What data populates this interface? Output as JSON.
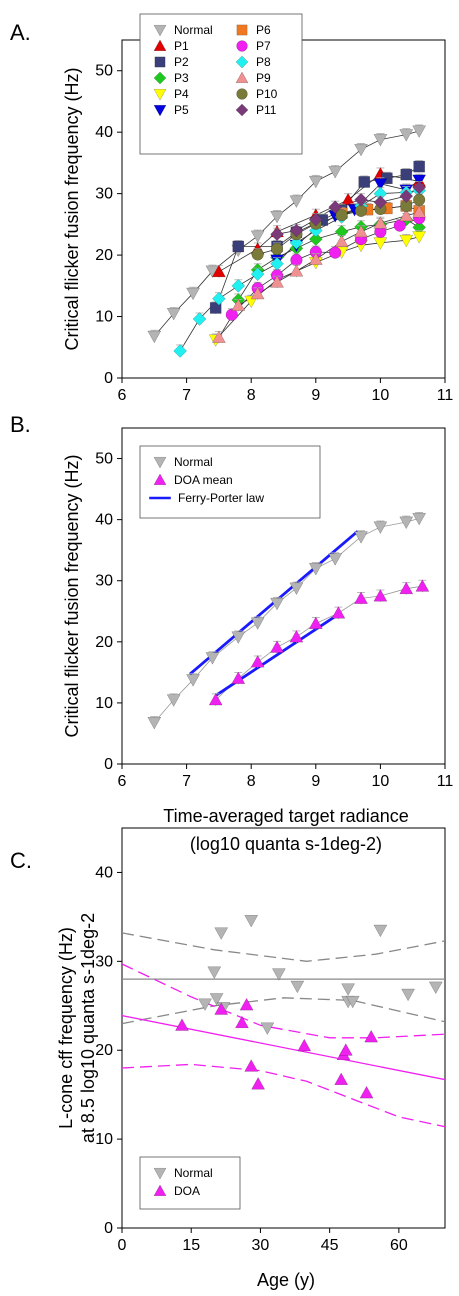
{
  "chart_data": [
    {
      "panel": "A.",
      "type": "scatter",
      "ylabel": "Critical flicker fusion frequency (Hz)",
      "xlim": [
        6,
        11
      ],
      "ylim": [
        0,
        55
      ],
      "xticks": [
        "6",
        "7",
        "8",
        "9",
        "10",
        "11"
      ],
      "yticks": [
        "0",
        "10",
        "20",
        "30",
        "40",
        "50"
      ],
      "legend_position": "top-left",
      "series": [
        {
          "name": "Normal",
          "marker": "triangle-down",
          "color": "#b4b4b4",
          "line": true,
          "points": [
            [
              6.5,
              6.8
            ],
            [
              6.8,
              10.5
            ],
            [
              7.1,
              13.8
            ],
            [
              7.4,
              17.4
            ],
            [
              7.8,
              20.8
            ],
            [
              8.1,
              23.1
            ],
            [
              8.4,
              26.3
            ],
            [
              8.7,
              28.8
            ],
            [
              9,
              32
            ],
            [
              9.3,
              33.6
            ],
            [
              9.7,
              37.2
            ],
            [
              10,
              38.8
            ],
            [
              10.4,
              39.6
            ],
            [
              10.6,
              40.2
            ]
          ]
        },
        {
          "name": "P1",
          "marker": "triangle-up",
          "color": "#e00000",
          "line": true,
          "points": [
            [
              7.5,
              17.3
            ],
            [
              8.1,
              21
            ],
            [
              8.4,
              23.8
            ],
            [
              9,
              26.5
            ],
            [
              9.5,
              29
            ],
            [
              10,
              33.2
            ],
            [
              10.6,
              32
            ]
          ]
        },
        {
          "name": "P2",
          "marker": "square",
          "color": "#3a3f7a",
          "line": true,
          "points": [
            [
              7.45,
              11.4
            ],
            [
              7.8,
              21.4
            ],
            [
              8.4,
              21.4
            ],
            [
              8.7,
              23.7
            ],
            [
              9.1,
              25.7
            ],
            [
              9.4,
              27.3
            ],
            [
              9.75,
              31.9
            ],
            [
              10.1,
              32.5
            ],
            [
              10.4,
              33.1
            ],
            [
              10.6,
              34.4
            ]
          ]
        },
        {
          "name": "P3",
          "marker": "diamond",
          "color": "#1ec81e",
          "line": true,
          "points": [
            [
              7.8,
              12.7
            ],
            [
              8.1,
              17.6
            ],
            [
              8.4,
              19.6
            ],
            [
              8.7,
              21.1
            ],
            [
              9,
              22.6
            ],
            [
              9.4,
              23.8
            ],
            [
              9.7,
              24.6
            ],
            [
              10,
              25
            ],
            [
              10.4,
              25.8
            ],
            [
              10.6,
              24.5
            ]
          ]
        },
        {
          "name": "P4",
          "marker": "triangle-down",
          "color": "#ffff00",
          "line": true,
          "points": [
            [
              7.45,
              6.2
            ],
            [
              8,
              12.5
            ],
            [
              8.4,
              16
            ],
            [
              9,
              18.8
            ],
            [
              9.4,
              20.5
            ],
            [
              9.7,
              21.6
            ],
            [
              10,
              22
            ],
            [
              10.4,
              22.4
            ],
            [
              10.6,
              23
            ]
          ]
        },
        {
          "name": "P5",
          "marker": "triangle-down",
          "color": "#0000e0",
          "line": true,
          "points": [
            [
              8.4,
              19.2
            ],
            [
              8.7,
              21.6
            ],
            [
              9,
              24.3
            ],
            [
              9.3,
              26.4
            ],
            [
              9.6,
              27.4
            ],
            [
              10,
              31.6
            ],
            [
              10.4,
              30.6
            ],
            [
              10.6,
              32.2
            ]
          ]
        },
        {
          "name": "P6",
          "marker": "square",
          "color": "#f07820",
          "line": true,
          "points": [
            [
              9.4,
              26.8
            ],
            [
              9.8,
              27.4
            ],
            [
              10.1,
              27.6
            ],
            [
              10.4,
              28
            ],
            [
              10.6,
              27.2
            ]
          ]
        },
        {
          "name": "P7",
          "marker": "circle",
          "color": "#f020f0",
          "line": true,
          "points": [
            [
              7.7,
              10.3
            ],
            [
              8.1,
              14.6
            ],
            [
              8.4,
              16.7
            ],
            [
              8.7,
              19.2
            ],
            [
              9,
              20.5
            ],
            [
              9.3,
              20.4
            ],
            [
              9.7,
              22.6
            ],
            [
              10,
              23.8
            ],
            [
              10.3,
              24.8
            ],
            [
              10.6,
              26
            ]
          ]
        },
        {
          "name": "P8",
          "marker": "diamond",
          "color": "#20f0f0",
          "line": true,
          "points": [
            [
              6.9,
              4.4
            ],
            [
              7.2,
              9.6
            ],
            [
              7.5,
              12.9
            ],
            [
              7.8,
              15
            ],
            [
              8.1,
              16.9
            ],
            [
              8.4,
              18.6
            ],
            [
              8.7,
              22
            ],
            [
              9,
              24
            ],
            [
              9.4,
              26.2
            ],
            [
              9.7,
              28
            ],
            [
              10,
              30
            ],
            [
              10.4,
              30.2
            ],
            [
              10.6,
              30.5
            ]
          ]
        },
        {
          "name": "P9",
          "marker": "triangle-up",
          "color": "#f09090",
          "line": true,
          "points": [
            [
              7.5,
              6.6
            ],
            [
              7.8,
              11.8
            ],
            [
              8.1,
              13.7
            ],
            [
              8.4,
              15.6
            ],
            [
              8.7,
              17.4
            ],
            [
              9,
              19.3
            ],
            [
              9.4,
              22.2
            ],
            [
              9.7,
              23.8
            ],
            [
              10,
              25.2
            ],
            [
              10.4,
              26.4
            ],
            [
              10.6,
              27
            ]
          ]
        },
        {
          "name": "P10",
          "marker": "circle",
          "color": "#7a7a3a",
          "line": true,
          "points": [
            [
              8.1,
              20.1
            ],
            [
              8.4,
              21
            ],
            [
              8.7,
              23.4
            ],
            [
              9,
              25.1
            ],
            [
              9.4,
              26.5
            ],
            [
              9.7,
              27.2
            ],
            [
              10,
              27.5
            ],
            [
              10.4,
              28
            ],
            [
              10.6,
              29
            ]
          ]
        },
        {
          "name": "P11",
          "marker": "diamond",
          "color": "#7a3a7a",
          "line": true,
          "points": [
            [
              8.4,
              23.4
            ],
            [
              8.7,
              24
            ],
            [
              9,
              25.8
            ],
            [
              9.3,
              27.8
            ],
            [
              9.7,
              29
            ],
            [
              10,
              28.6
            ],
            [
              10.4,
              29.6
            ],
            [
              10.6,
              31
            ]
          ]
        }
      ]
    },
    {
      "panel": "B.",
      "type": "scatter",
      "ylabel": "Critical flicker fusion frequency (Hz)",
      "xlabel_line1": "Time-averaged target radiance",
      "xlabel_line2": "(log10 quanta s-1deg-2)",
      "xlim": [
        6,
        11
      ],
      "ylim": [
        0,
        55
      ],
      "xticks": [
        "6",
        "7",
        "8",
        "9",
        "10",
        "11"
      ],
      "yticks": [
        "0",
        "10",
        "20",
        "30",
        "40",
        "50"
      ],
      "legend_position": "top-left",
      "series": [
        {
          "name": "Normal",
          "marker": "triangle-down",
          "color": "#b4b4b4",
          "line": true,
          "points": [
            [
              6.5,
              6.8
            ],
            [
              6.8,
              10.5
            ],
            [
              7.1,
              13.8
            ],
            [
              7.4,
              17.4
            ],
            [
              7.8,
              20.8
            ],
            [
              8.1,
              23.1
            ],
            [
              8.4,
              26.3
            ],
            [
              8.7,
              28.8
            ],
            [
              9,
              32
            ],
            [
              9.3,
              33.6
            ],
            [
              9.7,
              37.2
            ],
            [
              10,
              38.8
            ],
            [
              10.4,
              39.6
            ],
            [
              10.6,
              40.2
            ]
          ]
        },
        {
          "name": "DOA mean",
          "marker": "triangle-up",
          "color": "#f020f0",
          "line": true,
          "points": [
            [
              7.45,
              10.5
            ],
            [
              7.8,
              14
            ],
            [
              8.1,
              16.7
            ],
            [
              8.4,
              19.1
            ],
            [
              8.7,
              20.8
            ],
            [
              9,
              23
            ],
            [
              9.35,
              24.7
            ],
            [
              9.7,
              27.1
            ],
            [
              10,
              27.5
            ],
            [
              10.4,
              28.7
            ],
            [
              10.65,
              29.1
            ]
          ]
        },
        {
          "name": "Ferry-Porter law",
          "marker": "line",
          "color": "#1a1aff",
          "line": true,
          "lines": [
            [
              [
                7.05,
                14.7
              ],
              [
                9.65,
                38.1
              ]
            ],
            [
              [
                7.45,
                11.2
              ],
              [
                9.35,
                24.5
              ]
            ]
          ]
        }
      ]
    },
    {
      "panel": "C.",
      "type": "scatter",
      "ylabel_line1": "L-cone cff frequency (Hz)",
      "ylabel_line2": "at 8.5 log10 quanta s-1deg-2",
      "xlabel": "Age (y)",
      "xlim": [
        0,
        70
      ],
      "ylim": [
        0,
        45
      ],
      "xticks": [
        "0",
        "15",
        "30",
        "45",
        "60"
      ],
      "yticks": [
        "0",
        "10",
        "20",
        "30",
        "40"
      ],
      "legend_position": "bottom-left",
      "series": [
        {
          "name": "Normal",
          "marker": "triangle-down",
          "color": "#b4b4b4",
          "line": false,
          "points": [
            [
              18,
              25.2
            ],
            [
              20,
              28.8
            ],
            [
              20.5,
              25.8
            ],
            [
              21.5,
              33.2
            ],
            [
              22,
              24.8
            ],
            [
              28,
              34.6
            ],
            [
              31.5,
              22.5
            ],
            [
              34,
              28.6
            ],
            [
              38,
              27.2
            ],
            [
              49,
              26.9
            ],
            [
              49,
              25.5
            ],
            [
              50,
              25.5
            ],
            [
              56,
              33.5
            ],
            [
              62,
              26.3
            ],
            [
              68,
              27.1
            ]
          ]
        },
        {
          "name": "DOA",
          "marker": "triangle-up",
          "color": "#f020f0",
          "line": false,
          "points": [
            [
              13,
              22.8
            ],
            [
              21.5,
              24.6
            ],
            [
              26,
              23.1
            ],
            [
              27,
              25.1
            ],
            [
              28,
              18.2
            ],
            [
              29.5,
              16.2
            ],
            [
              39.5,
              20.5
            ],
            [
              47.5,
              16.7
            ],
            [
              48,
              19.5
            ],
            [
              48.5,
              20
            ],
            [
              53,
              15.2
            ],
            [
              54,
              21.5
            ]
          ]
        }
      ],
      "fit_lines": [
        {
          "color": "#888888",
          "style": "solid",
          "points": [
            [
              0,
              28
            ],
            [
              70,
              28
            ]
          ]
        },
        {
          "color": "#888888",
          "style": "dashed",
          "points": [
            [
              0,
              33.2
            ],
            [
              20,
              31.3
            ],
            [
              40,
              30
            ],
            [
              55,
              30.8
            ],
            [
              70,
              32.3
            ]
          ]
        },
        {
          "color": "#888888",
          "style": "dashed",
          "points": [
            [
              0,
              23
            ],
            [
              20,
              25
            ],
            [
              35,
              25.9
            ],
            [
              50,
              25.6
            ],
            [
              70,
              23.2
            ]
          ]
        },
        {
          "color": "#f020f0",
          "style": "solid",
          "points": [
            [
              0,
              23.9
            ],
            [
              70,
              16.7
            ]
          ]
        },
        {
          "color": "#f020f0",
          "style": "dashed",
          "points": [
            [
              0,
              29.7
            ],
            [
              15,
              26
            ],
            [
              30,
              22.8
            ],
            [
              45,
              21.4
            ],
            [
              55,
              21.4
            ],
            [
              70,
              21.8
            ]
          ]
        },
        {
          "color": "#f020f0",
          "style": "dashed",
          "points": [
            [
              0,
              18
            ],
            [
              15,
              18.4
            ],
            [
              30,
              17.7
            ],
            [
              40,
              16.5
            ],
            [
              50,
              14.5
            ],
            [
              60,
              12.5
            ],
            [
              70,
              11.4
            ]
          ]
        }
      ]
    }
  ]
}
